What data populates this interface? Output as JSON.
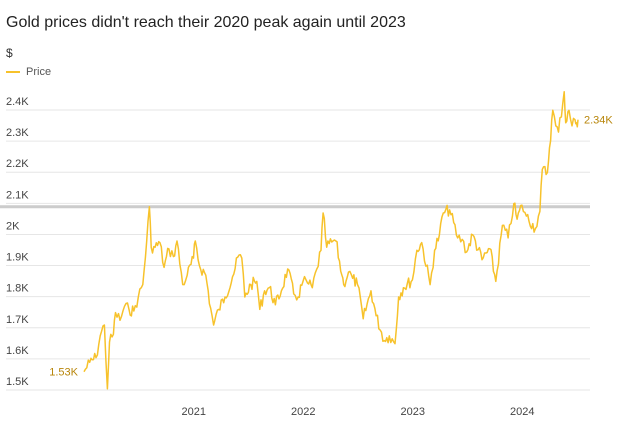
{
  "chart_data": {
    "type": "line",
    "title": "Gold prices didn't reach their 2020 peak again until 2023",
    "unit_label": "$",
    "legend": "Price",
    "series": [
      {
        "name": "Price",
        "points": [
          [
            "2020-01-01",
            1530
          ],
          [
            "2020-01-20",
            1560
          ],
          [
            "2020-02-10",
            1575
          ],
          [
            "2020-02-24",
            1645
          ],
          [
            "2020-03-09",
            1680
          ],
          [
            "2020-03-19",
            1475
          ],
          [
            "2020-03-26",
            1625
          ],
          [
            "2020-04-08",
            1650
          ],
          [
            "2020-04-15",
            1720
          ],
          [
            "2020-04-30",
            1695
          ],
          [
            "2020-05-15",
            1740
          ],
          [
            "2020-05-30",
            1730
          ],
          [
            "2020-06-15",
            1725
          ],
          [
            "2020-06-30",
            1770
          ],
          [
            "2020-07-15",
            1810
          ],
          [
            "2020-07-28",
            1950
          ],
          [
            "2020-08-06",
            2060
          ],
          [
            "2020-08-12",
            1930
          ],
          [
            "2020-08-25",
            1930
          ],
          [
            "2020-09-10",
            1945
          ],
          [
            "2020-09-24",
            1865
          ],
          [
            "2020-10-10",
            1925
          ],
          [
            "2020-10-25",
            1900
          ],
          [
            "2020-11-06",
            1950
          ],
          [
            "2020-11-25",
            1810
          ],
          [
            "2020-12-10",
            1840
          ],
          [
            "2020-12-31",
            1895
          ],
          [
            "2021-01-06",
            1950
          ],
          [
            "2021-01-20",
            1870
          ],
          [
            "2021-02-10",
            1840
          ],
          [
            "2021-02-26",
            1735
          ],
          [
            "2021-03-08",
            1680
          ],
          [
            "2021-03-25",
            1730
          ],
          [
            "2021-04-15",
            1770
          ],
          [
            "2021-05-10",
            1835
          ],
          [
            "2021-06-01",
            1905
          ],
          [
            "2021-06-10",
            1895
          ],
          [
            "2021-06-20",
            1770
          ],
          [
            "2021-07-10",
            1810
          ],
          [
            "2021-07-30",
            1820
          ],
          [
            "2021-08-09",
            1730
          ],
          [
            "2021-08-25",
            1790
          ],
          [
            "2021-09-10",
            1800
          ],
          [
            "2021-09-30",
            1745
          ],
          [
            "2021-10-20",
            1790
          ],
          [
            "2021-11-10",
            1860
          ],
          [
            "2021-11-30",
            1780
          ],
          [
            "2021-12-15",
            1770
          ],
          [
            "2021-12-31",
            1820
          ],
          [
            "2022-01-15",
            1815
          ],
          [
            "2022-01-31",
            1800
          ],
          [
            "2022-02-15",
            1860
          ],
          [
            "2022-03-01",
            1920
          ],
          [
            "2022-03-08",
            2040
          ],
          [
            "2022-03-20",
            1930
          ],
          [
            "2022-04-10",
            1950
          ],
          [
            "2022-04-20",
            1950
          ],
          [
            "2022-05-10",
            1840
          ],
          [
            "2022-05-16",
            1810
          ],
          [
            "2022-06-01",
            1850
          ],
          [
            "2022-06-15",
            1830
          ],
          [
            "2022-07-01",
            1810
          ],
          [
            "2022-07-20",
            1700
          ],
          [
            "2022-08-15",
            1790
          ],
          [
            "2022-09-01",
            1710
          ],
          [
            "2022-09-28",
            1630
          ],
          [
            "2022-10-15",
            1645
          ],
          [
            "2022-11-03",
            1620
          ],
          [
            "2022-11-15",
            1770
          ],
          [
            "2022-12-01",
            1800
          ],
          [
            "2022-12-31",
            1825
          ],
          [
            "2023-01-15",
            1920
          ],
          [
            "2023-01-31",
            1945
          ],
          [
            "2023-02-28",
            1810
          ],
          [
            "2023-03-15",
            1920
          ],
          [
            "2023-03-31",
            1970
          ],
          [
            "2023-04-13",
            2040
          ],
          [
            "2023-05-04",
            2050
          ],
          [
            "2023-05-31",
            1960
          ],
          [
            "2023-06-15",
            1955
          ],
          [
            "2023-06-30",
            1915
          ],
          [
            "2023-07-20",
            1970
          ],
          [
            "2023-08-20",
            1890
          ],
          [
            "2023-09-15",
            1925
          ],
          [
            "2023-10-05",
            1820
          ],
          [
            "2023-10-27",
            2000
          ],
          [
            "2023-11-15",
            1960
          ],
          [
            "2023-12-04",
            2070
          ],
          [
            "2023-12-15",
            2020
          ],
          [
            "2023-12-31",
            2065
          ],
          [
            "2024-01-15",
            2030
          ],
          [
            "2024-02-14",
            1990
          ],
          [
            "2024-02-29",
            2045
          ],
          [
            "2024-03-08",
            2180
          ],
          [
            "2024-03-25",
            2170
          ],
          [
            "2024-04-01",
            2250
          ],
          [
            "2024-04-12",
            2370
          ],
          [
            "2024-04-22",
            2320
          ],
          [
            "2024-05-01",
            2300
          ],
          [
            "2024-05-20",
            2430
          ],
          [
            "2024-05-25",
            2330
          ],
          [
            "2024-06-05",
            2370
          ],
          [
            "2024-06-15",
            2320
          ],
          [
            "2024-06-25",
            2340
          ],
          [
            "2024-06-30",
            2330
          ],
          [
            "2024-07-05",
            2340
          ]
        ]
      }
    ],
    "ylim": [
      1450,
      2470
    ],
    "yticks": [
      1500,
      1600,
      1700,
      1800,
      1900,
      2000,
      2100,
      2200,
      2300,
      2400
    ],
    "ytick_labels": [
      "1.5K",
      "1.6K",
      "1.7K",
      "1.8K",
      "1.9K",
      "2K",
      "2.1K",
      "2.2K",
      "2.3K",
      "2.4K"
    ],
    "xticks": [
      "2021-01-01",
      "2022-01-01",
      "2023-01-01",
      "2024-01-01"
    ],
    "xtick_labels": [
      "2021",
      "2022",
      "2023",
      "2024"
    ],
    "reference_line": 2060,
    "start_label": "1.53K",
    "end_label": "2.34K",
    "grid": true,
    "line_color": "#f7c22b",
    "reference_color": "#cccccc"
  }
}
